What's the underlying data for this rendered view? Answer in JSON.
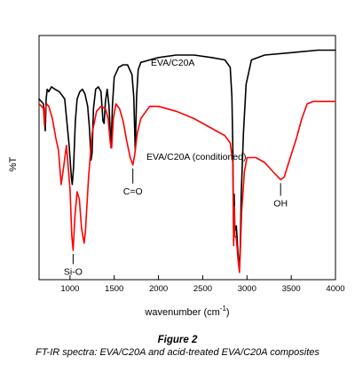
{
  "chart_data": {
    "type": "line",
    "xlabel": "wavenumber (cm",
    "xlabel_sup": "-1",
    "xlabel_end": ")",
    "ylabel": "%T",
    "xlim": [
      650,
      4000
    ],
    "ylim": [
      0,
      100
    ],
    "xticks": [
      1000,
      1500,
      2000,
      2500,
      3000,
      3500,
      4000
    ],
    "tick_labels": [
      "1000",
      "1500",
      "2000",
      "2500",
      "3000",
      "3500",
      "4000"
    ],
    "grid": false,
    "series": [
      {
        "name": "EVA/C20A",
        "color": "#000000",
        "x": [
          650,
          700,
          720,
          730,
          742,
          760,
          790,
          830,
          880,
          940,
          990,
          1015,
          1025,
          1040,
          1060,
          1080,
          1110,
          1140,
          1170,
          1200,
          1220,
          1238,
          1250,
          1265,
          1290,
          1320,
          1350,
          1372,
          1385,
          1400,
          1420,
          1440,
          1463,
          1480,
          1500,
          1550,
          1600,
          1650,
          1700,
          1720,
          1737,
          1752,
          1770,
          1800,
          1900,
          2000,
          2200,
          2400,
          2600,
          2750,
          2810,
          2830,
          2840,
          2850,
          2856,
          2863,
          2880,
          2900,
          2915,
          2925,
          2935,
          2960,
          2990,
          3050,
          3200,
          3500,
          3800,
          4000
        ],
        "y": [
          74,
          72,
          61,
          74,
          78,
          77,
          79,
          78,
          77,
          74,
          55,
          42,
          39,
          46,
          65,
          74,
          77,
          78,
          76,
          71,
          62,
          49,
          52,
          70,
          78,
          79,
          77,
          65,
          64,
          73,
          78,
          71,
          54,
          72,
          83,
          87,
          88,
          88,
          84,
          75,
          53,
          75,
          86,
          89,
          90,
          91,
          92,
          92,
          91,
          90,
          87,
          75,
          55,
          17,
          35,
          20,
          22,
          10,
          5,
          14,
          35,
          60,
          80,
          90,
          92,
          93,
          94,
          94
        ]
      },
      {
        "name": "EVA/C20A (conditioned)",
        "color": "#ff0000",
        "x": [
          650,
          680,
          700,
          712,
          722,
          735,
          760,
          800,
          840,
          870,
          900,
          920,
          960,
          1000,
          1020,
          1035,
          1055,
          1080,
          1105,
          1130,
          1160,
          1175,
          1210,
          1250,
          1300,
          1350,
          1400,
          1430,
          1455,
          1470,
          1490,
          1520,
          1560,
          1600,
          1640,
          1680,
          1710,
          1730,
          1760,
          1800,
          1900,
          2000,
          2200,
          2400,
          2600,
          2750,
          2810,
          2840,
          2850,
          2856,
          2863,
          2880,
          2900,
          2915,
          2925,
          2940,
          2970,
          3000,
          3100,
          3200,
          3300,
          3380,
          3420,
          3480,
          3560,
          3620,
          3680,
          3750,
          3850,
          4000
        ],
        "y": [
          72,
          71,
          70,
          63,
          70,
          72,
          71,
          66,
          58,
          53,
          39,
          44,
          55,
          37,
          18,
          12,
          26,
          36,
          33,
          21,
          15,
          20,
          42,
          60,
          69,
          71,
          70,
          66,
          56,
          54,
          66,
          72,
          70,
          65,
          57,
          50,
          47,
          51,
          60,
          66,
          71,
          71,
          69,
          66,
          62,
          59,
          56,
          48,
          14,
          30,
          18,
          17,
          8,
          3,
          12,
          28,
          44,
          50,
          50,
          48,
          44,
          41,
          42,
          49,
          58,
          66,
          72,
          73,
          73,
          73
        ]
      }
    ],
    "series_labels": [
      "EVA/C20A",
      "EVA/C20A (conditioned)"
    ],
    "annotations": [
      {
        "text": "C=O",
        "x": 1710,
        "y": 47,
        "label_y": 35
      },
      {
        "text": "OH",
        "x": 3380,
        "y": 41,
        "label_y": 30
      },
      {
        "text": "Si-O",
        "x": 1035,
        "y": 12,
        "label_y": 2
      }
    ]
  },
  "caption": {
    "title": "Figure 2",
    "text": "FT-IR spectra: EVA/C20A and acid-treated EVA/C20A composites"
  }
}
